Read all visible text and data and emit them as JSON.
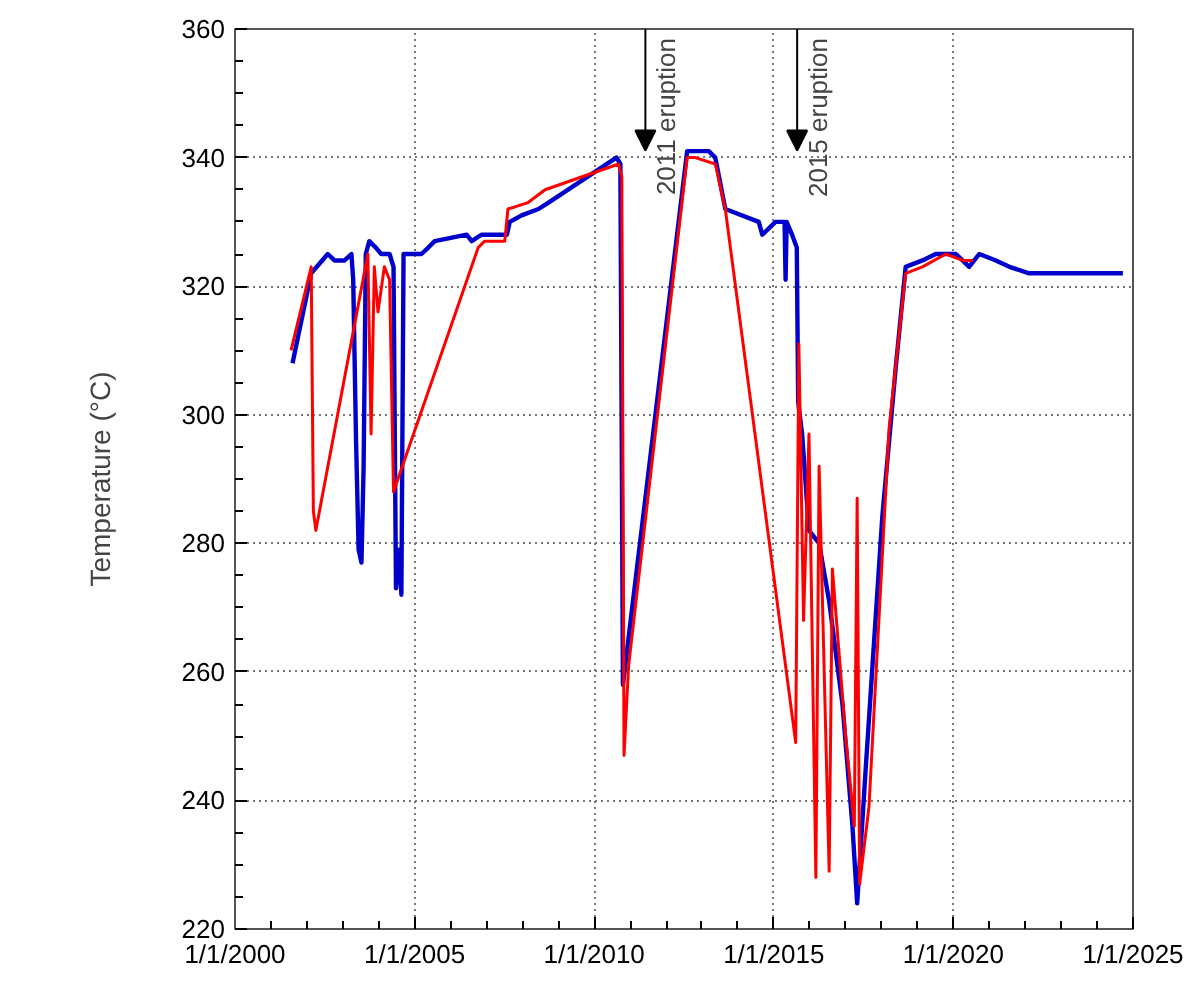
{
  "chart_data": {
    "type": "line",
    "ylabel": "Temperature (°C)",
    "xlim": [
      "2000-01-01",
      "2025-01-01"
    ],
    "xticks": [
      {
        "value": "2000-01-01",
        "label": "1/1/2000"
      },
      {
        "value": "2005-01-01",
        "label": "1/1/2005"
      },
      {
        "value": "2010-01-01",
        "label": "1/1/2010"
      },
      {
        "value": "2015-01-01",
        "label": "1/1/2015"
      },
      {
        "value": "2020-01-01",
        "label": "1/1/2020"
      },
      {
        "value": "2025-01-01",
        "label": "1/1/2025"
      }
    ],
    "ylim": [
      220,
      360
    ],
    "yticks": [
      220,
      240,
      260,
      280,
      300,
      320,
      340,
      360
    ],
    "grid": true,
    "marker": "none",
    "line_style": "solid",
    "series": [
      {
        "color": "#0000cc",
        "x": [
          "2001-08-08",
          "2002-02-14",
          "2002-08-01",
          "2002-10-09",
          "2003-01-19",
          "2003-03-30",
          "2003-04-17",
          "2003-05-16",
          "2003-06-11",
          "2003-07-10",
          "2003-08-01",
          "2003-08-23",
          "2003-09-28",
          "2003-12-03",
          "2004-01-27",
          "2004-04-21",
          "2004-05-31",
          "2004-06-25",
          "2004-07-23",
          "2004-08-19",
          "2004-09-10",
          "2005-03-11",
          "2005-05-20",
          "2005-07-24",
          "2006-06-14",
          "2006-08-04",
          "2006-11-11",
          "2007-07-28",
          "2007-08-26",
          "2007-12-25",
          "2008-06-13",
          "2008-09-23",
          "2010-08-15",
          "2010-09-24",
          "2010-10-20",
          "2012-08-03",
          "2013-03-11",
          "2013-05-16",
          "2013-08-26",
          "2014-08-01",
          "2014-09-06",
          "2015-01-19",
          "2015-04-21",
          "2015-05-01",
          "2015-05-12",
          "2015-07-06",
          "2015-08-23",
          "2015-09-06",
          "2015-10-16",
          "2015-12-25",
          "2016-04-06",
          "2016-07-17",
          "2016-11-29",
          "2017-03-11",
          "2017-04-28",
          "2017-07-24",
          "2018-01-08",
          "2018-05-23",
          "2018-09-03",
          "2019-02-21",
          "2019-07-06",
          "2020-01-27",
          "2020-06-10",
          "2020-09-20",
          "2021-03-08",
          "2021-07-24",
          "2022-02-10",
          "2022-11-11",
          "2024-09-20"
        ],
        "values": [
          308,
          322,
          325,
          324,
          324,
          325,
          321,
          296,
          279,
          277,
          292,
          325,
          327,
          326,
          325,
          325,
          323,
          273,
          279,
          272,
          325,
          325,
          326,
          327,
          328,
          327,
          328,
          328,
          330,
          331,
          332,
          333,
          340,
          339,
          258,
          341,
          341,
          340,
          332,
          330,
          328,
          330,
          330,
          321,
          330,
          328,
          326,
          302,
          297,
          282,
          280,
          271,
          255,
          236,
          224,
          245,
          284,
          307,
          323,
          324,
          325,
          325,
          323,
          325,
          324,
          323,
          322,
          322,
          322
        ]
      },
      {
        "color": "#ff0000",
        "x": [
          "2001-07-24",
          "2002-02-14",
          "2002-03-08",
          "2002-04-02",
          "2003-09-13",
          "2003-10-16",
          "2003-11-18",
          "2003-12-25",
          "2004-02-28",
          "2004-04-21",
          "2004-05-31",
          "2006-10-09",
          "2006-12-14",
          "2007-07-06",
          "2007-08-08",
          "2008-02-28",
          "2008-08-19",
          "2010-09-06",
          "2010-10-09",
          "2010-10-31",
          "2010-12-17",
          "2012-08-03",
          "2012-10-24",
          "2013-05-16",
          "2013-08-26",
          "2015-08-12",
          "2015-09-13",
          "2015-10-31",
          "2015-12-25",
          "2016-03-04",
          "2016-04-06",
          "2016-07-17",
          "2016-08-19",
          "2017-01-01",
          "2017-03-30",
          "2017-04-28",
          "2017-05-23",
          "2017-08-26",
          "2018-03-19",
          "2018-09-03",
          "2019-02-21",
          "2019-10-16",
          "2020-04-06",
          "2020-07-17"
        ],
        "values": [
          310,
          323,
          285,
          282,
          325,
          297,
          323,
          316,
          323,
          321,
          288,
          326,
          327,
          327,
          332,
          333,
          335,
          339,
          337,
          247,
          261,
          340,
          340,
          339,
          332,
          249,
          311,
          268,
          297,
          228,
          292,
          229,
          276,
          250,
          236,
          287,
          227,
          239,
          298,
          322,
          323,
          325,
          324,
          324
        ]
      }
    ],
    "annotations": [
      "2011 eruption",
      "2015 eruption"
    ]
  }
}
